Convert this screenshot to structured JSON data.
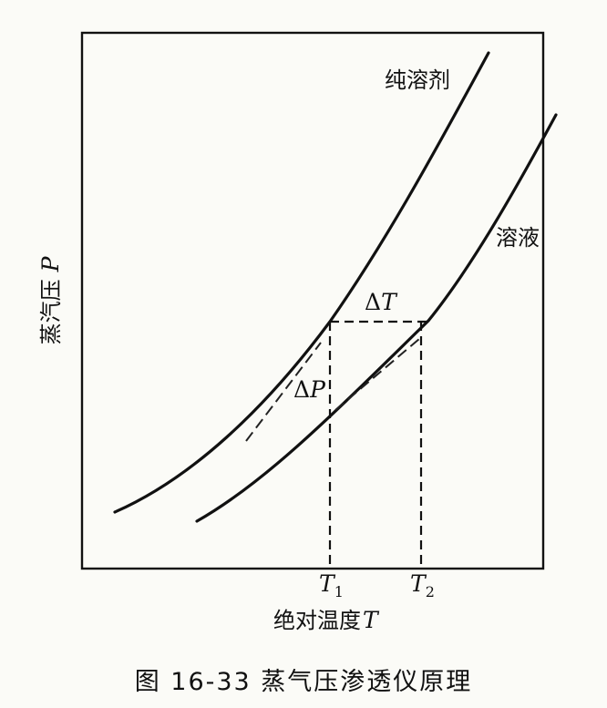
{
  "curves": {
    "pure_solvent_label": "纯溶剂",
    "solution_label": "溶液"
  },
  "annotations": {
    "delta_t_symbol": "Δ",
    "delta_t_var": "T",
    "delta_p_symbol": "Δ",
    "delta_p_var": "P"
  },
  "axes": {
    "y_label_text": "蒸汽压",
    "y_label_var": "P",
    "x_label_text": "绝对温度",
    "x_label_var": "T",
    "t1_var": "T",
    "t1_sub": "1",
    "t2_var": "T",
    "t2_sub": "2"
  },
  "caption": {
    "text": "图 16-33  蒸气压渗透仪原理"
  }
}
